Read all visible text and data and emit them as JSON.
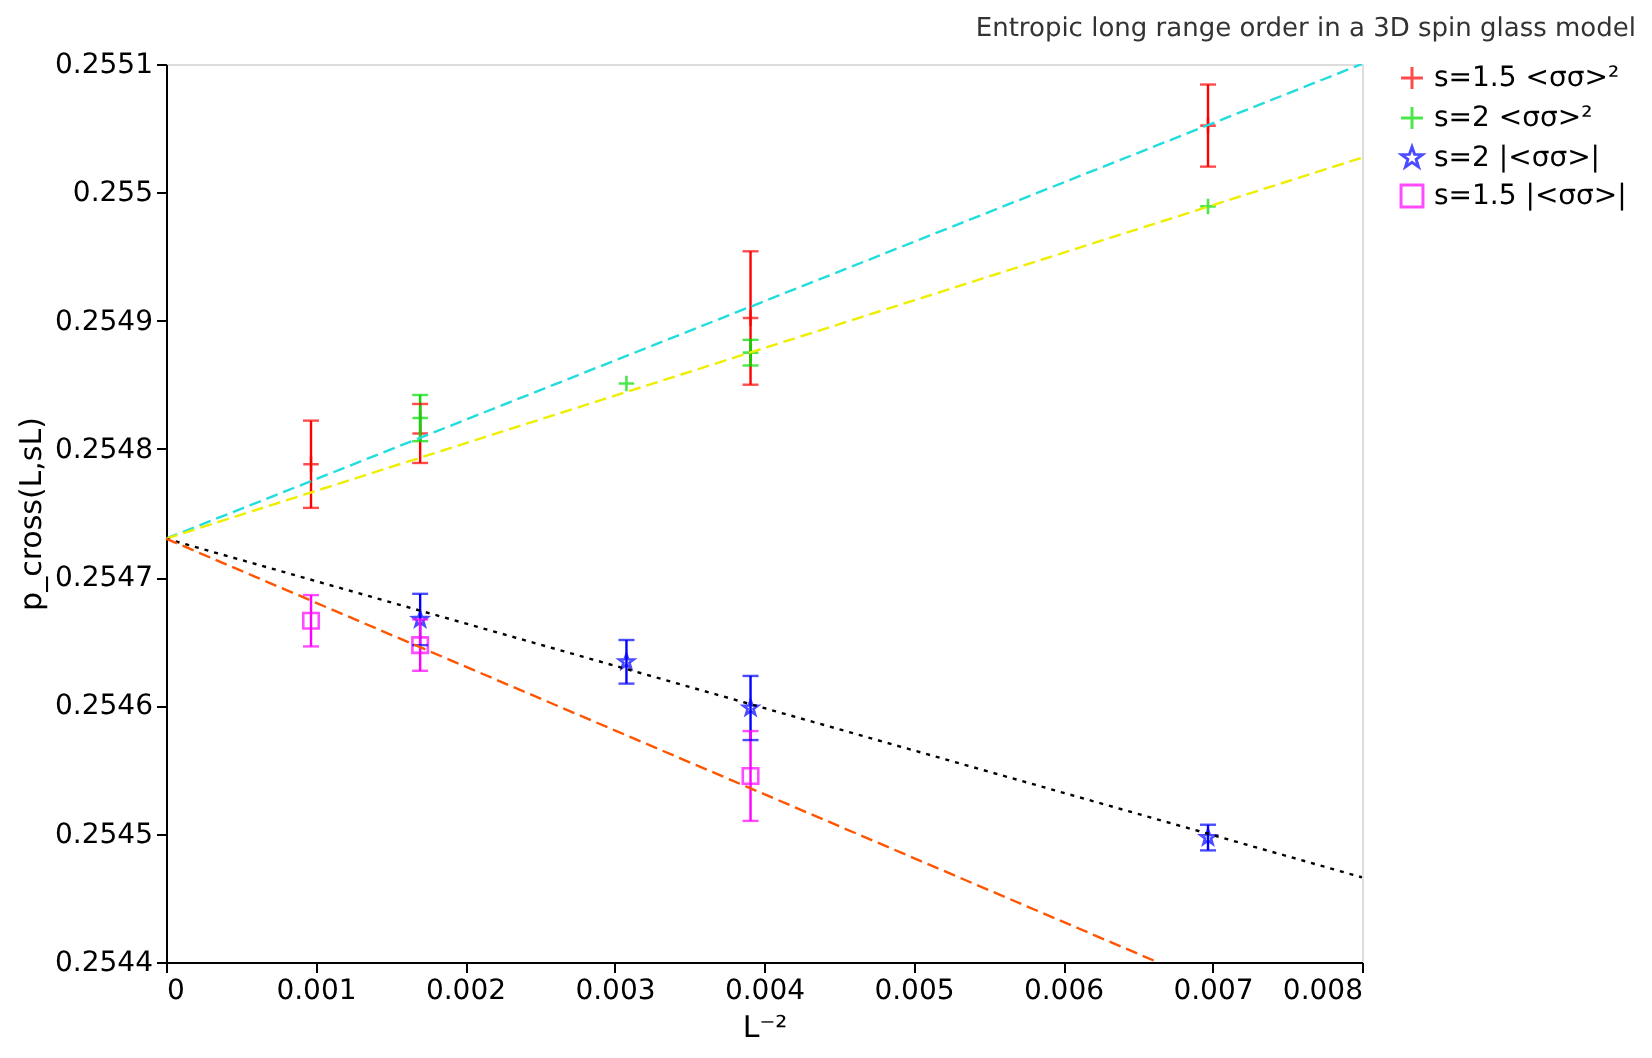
{
  "chart_data": {
    "type": "scatter",
    "title": "Entropic long range order in a 3D spin glass model",
    "xlabel": "L⁻²",
    "ylabel": "p_cross(L,sL)",
    "xlim": [
      0,
      0.008
    ],
    "xticks": [
      0,
      0.001,
      0.002,
      0.003,
      0.004,
      0.005,
      0.006,
      0.007,
      0.008
    ],
    "ylim": [
      0.2544,
      0.2551
    ],
    "yticks": [
      0.2544,
      0.2545,
      0.2546,
      0.2547,
      0.2548,
      0.2549,
      0.255,
      0.2551
    ],
    "grid": false,
    "legend": "right",
    "series": [
      {
        "name": "s=1.5  <σσ>²",
        "color": "#ff0000",
        "marker": "cross",
        "x": [
          0.00097,
          0.0017,
          0.00391,
          0.00697
        ],
        "values": [
          0.254788,
          0.254812,
          0.254902,
          0.255052
        ],
        "errors": [
          3.4e-05,
          2.3e-05,
          5.2e-05,
          3.2e-05
        ]
      },
      {
        "name": "s=2  <σσ>²",
        "color": "#00dd00",
        "marker": "cross",
        "x": [
          0.0017,
          0.00308,
          0.00391,
          0.00697
        ],
        "values": [
          0.254824,
          0.254851,
          0.254875,
          0.254989
        ],
        "errors": [
          1.8e-05,
          null,
          1e-05,
          null
        ]
      },
      {
        "name": "s=2  |<σσ>|",
        "color": "#0000ff",
        "marker": "star",
        "x": [
          0.0017,
          0.00308,
          0.00391,
          0.00697
        ],
        "values": [
          0.254667,
          0.254634,
          0.254598,
          0.254497
        ],
        "errors": [
          2e-05,
          1.7e-05,
          2.5e-05,
          1e-05
        ]
      },
      {
        "name": "s=1.5  |<σσ>|",
        "color": "#ff00ff",
        "marker": "square",
        "x": [
          0.00097,
          0.0017,
          0.00391
        ],
        "values": [
          0.254666,
          0.254647,
          0.254545
        ],
        "errors": [
          2e-05,
          2e-05,
          3.5e-05
        ]
      },
      {
        "type": "line",
        "color": "#22dddd",
        "line_style": "dashed",
        "x": [
          0,
          0.008
        ],
        "values": [
          0.25473,
          0.2551
        ]
      },
      {
        "type": "line",
        "color": "#eeee00",
        "line_style": "dashed",
        "x": [
          0,
          0.008
        ],
        "values": [
          0.25473,
          0.255027
        ]
      },
      {
        "type": "line",
        "color": "#000000",
        "line_style": "dotted",
        "x": [
          0,
          0.008
        ],
        "values": [
          0.25473,
          0.254466
        ]
      },
      {
        "type": "line",
        "color": "#ff5500",
        "line_style": "dashed",
        "x": [
          0,
          0.00663
        ],
        "values": [
          0.25473,
          0.2544
        ]
      }
    ]
  }
}
